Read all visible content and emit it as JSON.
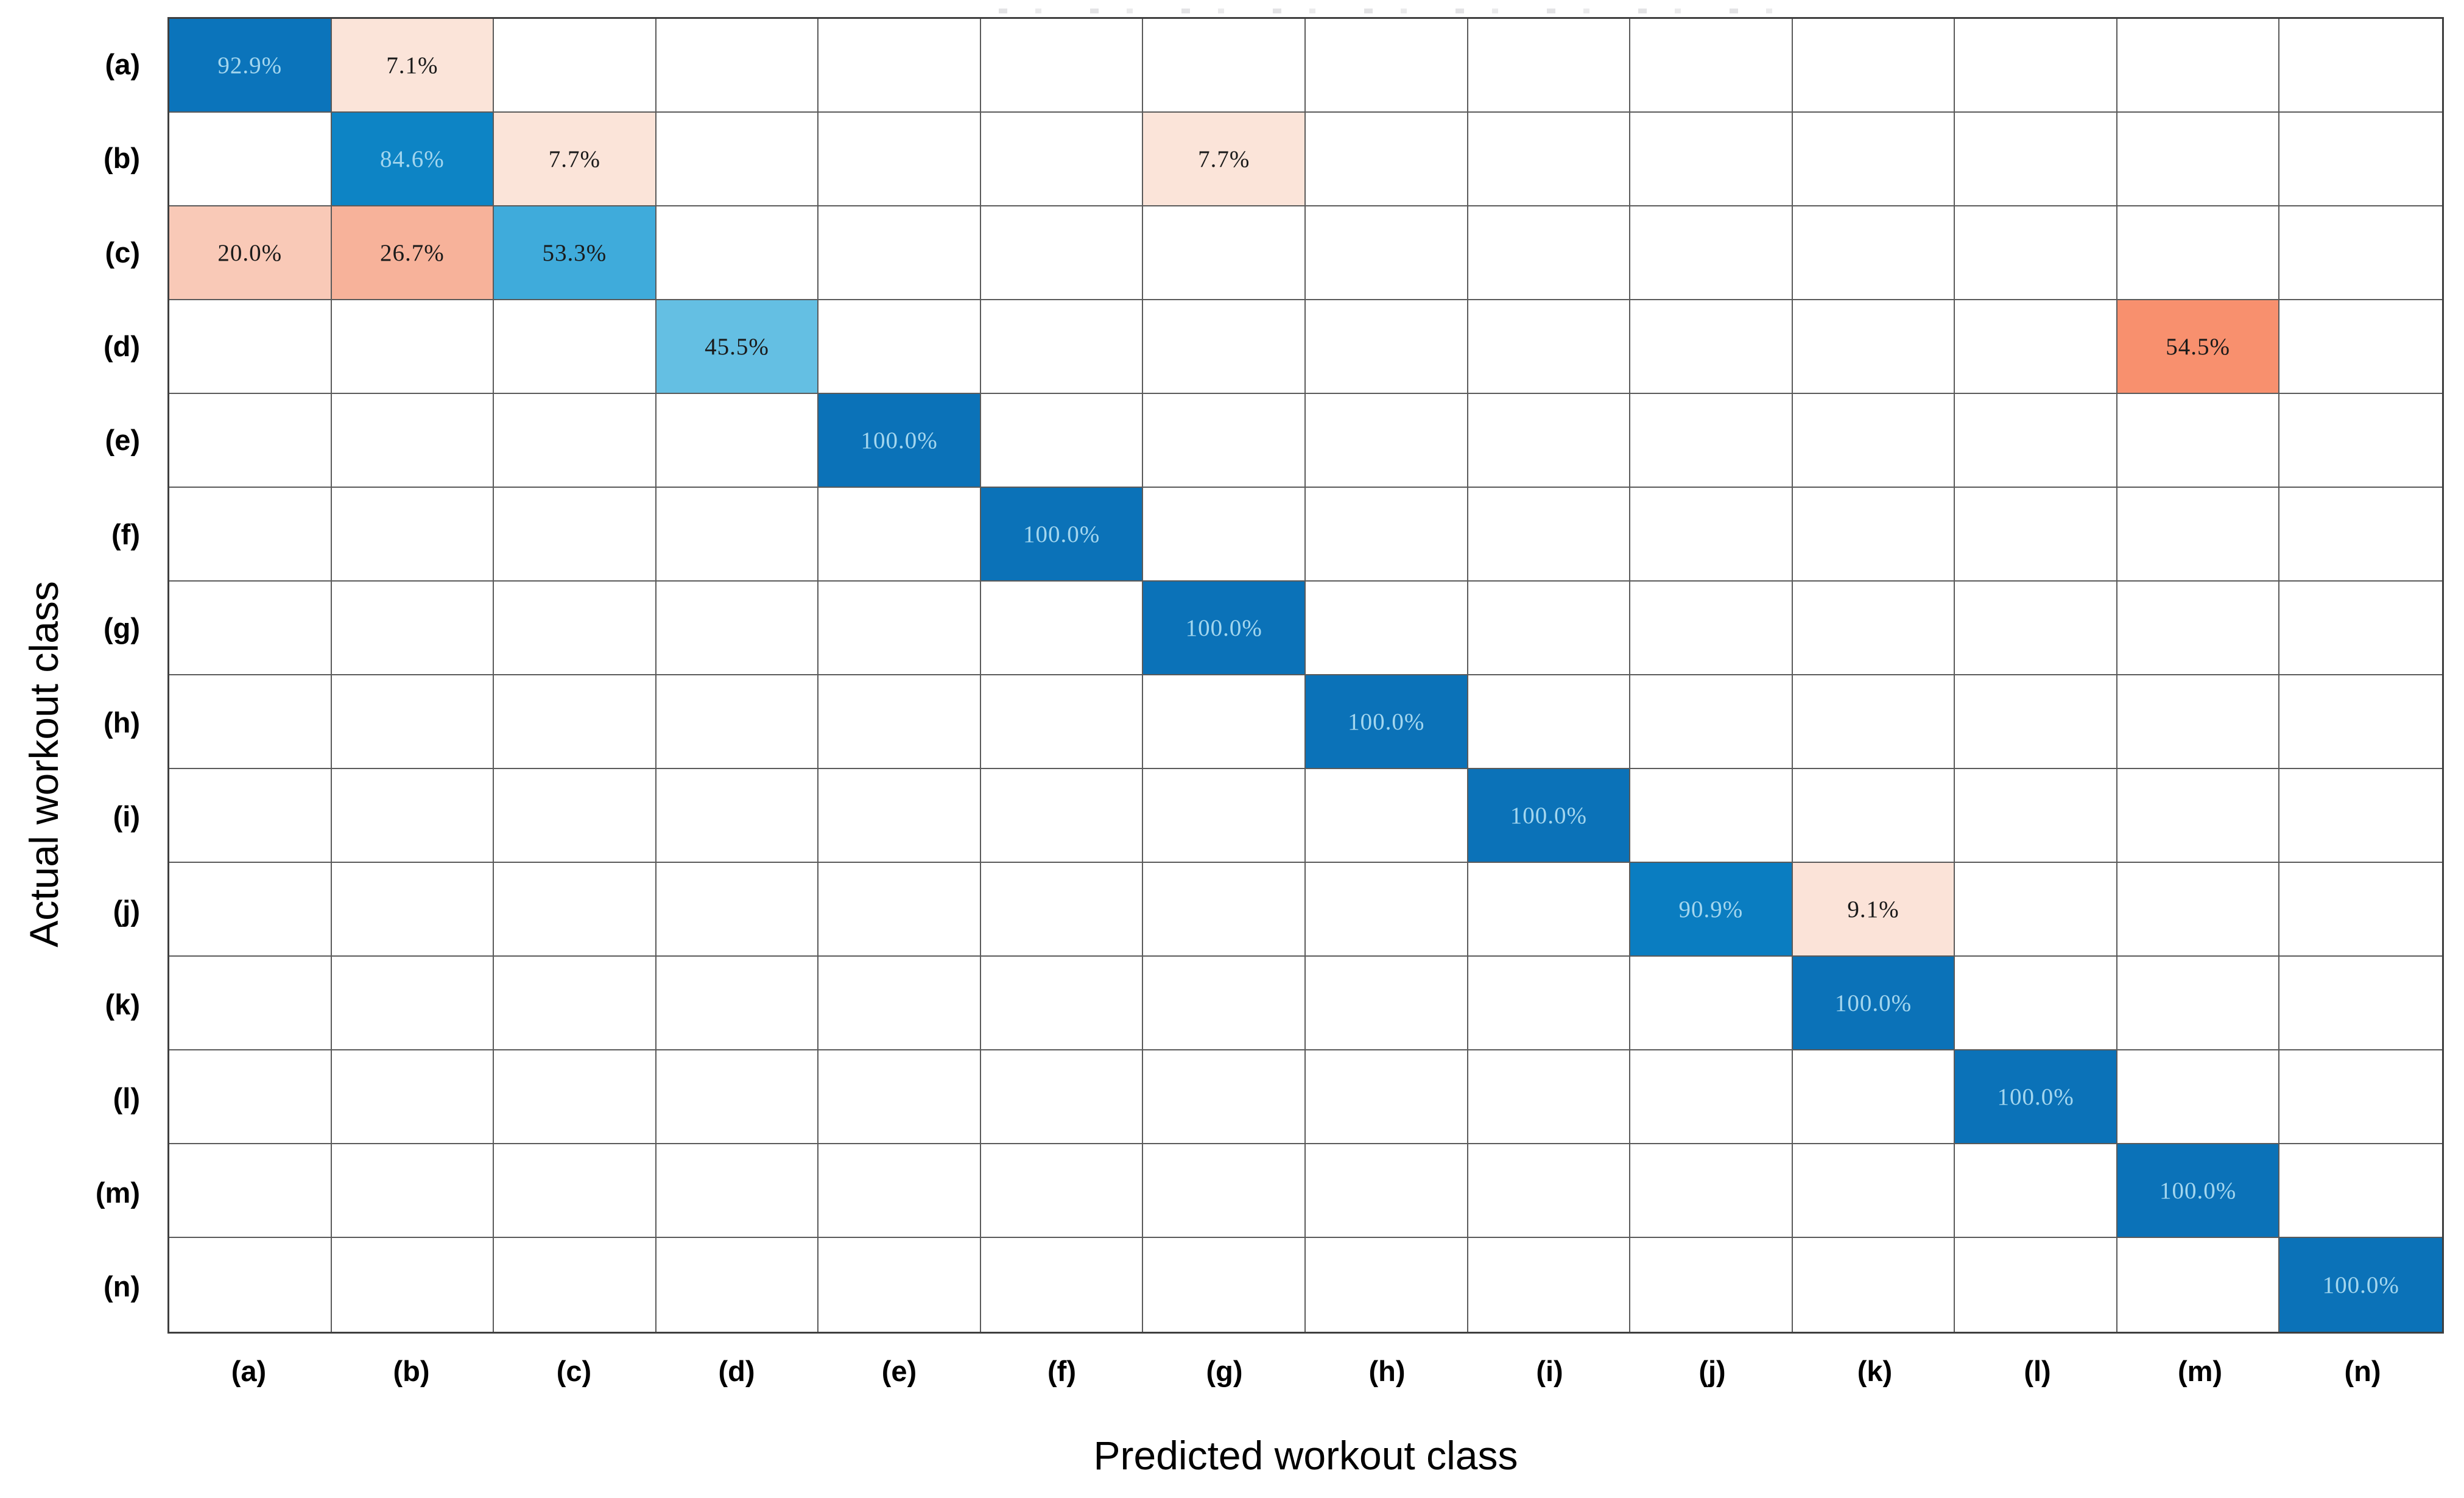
{
  "chart_data": {
    "type": "heatmap",
    "title": "",
    "xlabel": "Predicted workout class",
    "ylabel": "Actual workout class",
    "x_categories": [
      "(a)",
      "(b)",
      "(c)",
      "(d)",
      "(e)",
      "(f)",
      "(g)",
      "(h)",
      "(i)",
      "(j)",
      "(k)",
      "(l)",
      "(m)",
      "(n)"
    ],
    "y_categories": [
      "(a)",
      "(b)",
      "(c)",
      "(d)",
      "(e)",
      "(f)",
      "(g)",
      "(h)",
      "(i)",
      "(j)",
      "(k)",
      "(l)",
      "(m)",
      "(n)"
    ],
    "legend_position": "none",
    "grid_on": true,
    "grid_line_color": "#5a5a5a",
    "outer_border_color": "#3f3f3f",
    "empty_cell_color": "#ffffff",
    "dark_cell_text_color": "#a3d6ee",
    "light_cell_text_color": "#1a1a1a",
    "cells": [
      {
        "row": "(a)",
        "col": "(a)",
        "value": 92.9,
        "label": "92.9%",
        "bg": "#0b74bb",
        "text_color": "#a3d6ee"
      },
      {
        "row": "(a)",
        "col": "(b)",
        "value": 7.1,
        "label": "7.1%",
        "bg": "#fbe4d9",
        "text_color": "#1a1a1a"
      },
      {
        "row": "(b)",
        "col": "(b)",
        "value": 84.6,
        "label": "84.6%",
        "bg": "#0d84c5",
        "text_color": "#a3d6ee"
      },
      {
        "row": "(b)",
        "col": "(c)",
        "value": 7.7,
        "label": "7.7%",
        "bg": "#fbe4d9",
        "text_color": "#1a1a1a"
      },
      {
        "row": "(b)",
        "col": "(g)",
        "value": 7.7,
        "label": "7.7%",
        "bg": "#fbe4d9",
        "text_color": "#1a1a1a"
      },
      {
        "row": "(c)",
        "col": "(a)",
        "value": 20.0,
        "label": "20.0%",
        "bg": "#f9c9b7",
        "text_color": "#1a1a1a"
      },
      {
        "row": "(c)",
        "col": "(b)",
        "value": 26.7,
        "label": "26.7%",
        "bg": "#f7b29a",
        "text_color": "#1a1a1a"
      },
      {
        "row": "(c)",
        "col": "(c)",
        "value": 53.3,
        "label": "53.3%",
        "bg": "#3fabdb",
        "text_color": "#1a1a1a"
      },
      {
        "row": "(d)",
        "col": "(d)",
        "value": 45.5,
        "label": "45.5%",
        "bg": "#64bfe3",
        "text_color": "#1a1a1a"
      },
      {
        "row": "(d)",
        "col": "(m)",
        "value": 54.5,
        "label": "54.5%",
        "bg": "#f8906e",
        "text_color": "#1a1a1a"
      },
      {
        "row": "(e)",
        "col": "(e)",
        "value": 100.0,
        "label": "100.0%",
        "bg": "#0b72b8",
        "text_color": "#a3d6ee"
      },
      {
        "row": "(f)",
        "col": "(f)",
        "value": 100.0,
        "label": "100.0%",
        "bg": "#0b72b8",
        "text_color": "#a3d6ee"
      },
      {
        "row": "(g)",
        "col": "(g)",
        "value": 100.0,
        "label": "100.0%",
        "bg": "#0b72b8",
        "text_color": "#a3d6ee"
      },
      {
        "row": "(h)",
        "col": "(h)",
        "value": 100.0,
        "label": "100.0%",
        "bg": "#0b72b8",
        "text_color": "#a3d6ee"
      },
      {
        "row": "(i)",
        "col": "(i)",
        "value": 100.0,
        "label": "100.0%",
        "bg": "#0b72b8",
        "text_color": "#a3d6ee"
      },
      {
        "row": "(j)",
        "col": "(j)",
        "value": 90.9,
        "label": "90.9%",
        "bg": "#0a7dc1",
        "text_color": "#a3d6ee"
      },
      {
        "row": "(j)",
        "col": "(k)",
        "value": 9.1,
        "label": "9.1%",
        "bg": "#fbe3d8",
        "text_color": "#1a1a1a"
      },
      {
        "row": "(k)",
        "col": "(k)",
        "value": 100.0,
        "label": "100.0%",
        "bg": "#0b72b8",
        "text_color": "#a3d6ee"
      },
      {
        "row": "(l)",
        "col": "(l)",
        "value": 100.0,
        "label": "100.0%",
        "bg": "#0b72b8",
        "text_color": "#a3d6ee"
      },
      {
        "row": "(m)",
        "col": "(m)",
        "value": 100.0,
        "label": "100.0%",
        "bg": "#0b72b8",
        "text_color": "#a3d6ee"
      },
      {
        "row": "(n)",
        "col": "(n)",
        "value": 100.0,
        "label": "100.0%",
        "bg": "#0b72b8",
        "text_color": "#a3d6ee"
      }
    ]
  }
}
